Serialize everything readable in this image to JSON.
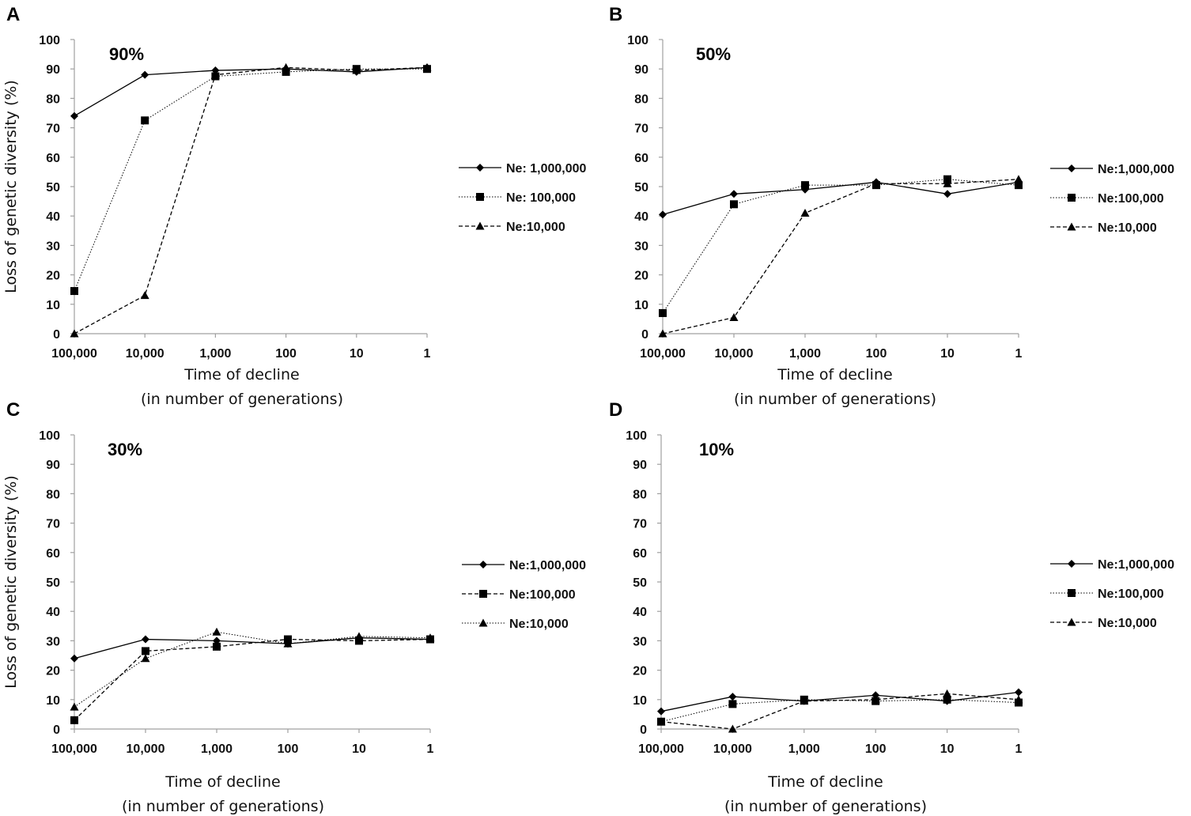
{
  "chart_data": [
    {
      "type": "line",
      "panel": "A",
      "annotation": "90%",
      "categories": [
        "100,000",
        "10,000",
        "1,000",
        "100",
        "10",
        "1"
      ],
      "ylabel": "Loss of genetic diversity (%)",
      "xlabel": "Time of decline",
      "xlabel2": "(in number of generations)",
      "ylim": [
        0,
        100
      ],
      "yticks": [
        0,
        10,
        20,
        30,
        40,
        50,
        60,
        70,
        80,
        90,
        100
      ],
      "legend_position": "right",
      "series": [
        {
          "name": "Ne: 1,000,000",
          "marker": "diamond",
          "line": "solid",
          "values": [
            74,
            88,
            89.5,
            90,
            89,
            90.5
          ]
        },
        {
          "name": "Ne: 100,000",
          "marker": "square",
          "line": "dotted",
          "values": [
            14.5,
            72.5,
            87.5,
            89,
            90,
            90
          ]
        },
        {
          "name": "Ne:10,000",
          "marker": "triangle",
          "line": "dashed",
          "values": [
            0,
            13,
            88,
            90.5,
            89.5,
            90.5
          ]
        }
      ]
    },
    {
      "type": "line",
      "panel": "B",
      "annotation": "50%",
      "categories": [
        "100,000",
        "10,000",
        "1,000",
        "100",
        "10",
        "1"
      ],
      "ylabel": "",
      "xlabel": "Time of decline",
      "xlabel2": "(in number of generations)",
      "ylim": [
        0,
        100
      ],
      "yticks": [
        0,
        10,
        20,
        30,
        40,
        50,
        60,
        70,
        80,
        90,
        100
      ],
      "legend_position": "right",
      "series": [
        {
          "name": "Ne:1,000,000",
          "marker": "diamond",
          "line": "solid",
          "values": [
            40.5,
            47.5,
            49,
            51.5,
            47.5,
            51.5
          ]
        },
        {
          "name": "Ne:100,000",
          "marker": "square",
          "line": "dotted",
          "values": [
            7,
            44,
            50.5,
            50.5,
            52.5,
            50.5
          ]
        },
        {
          "name": "Ne:10,000",
          "marker": "triangle",
          "line": "dashed",
          "values": [
            0,
            5.5,
            41,
            51,
            51,
            52.5
          ]
        }
      ]
    },
    {
      "type": "line",
      "panel": "C",
      "annotation": "30%",
      "categories": [
        "100,000",
        "10,000",
        "1,000",
        "100",
        "10",
        "1"
      ],
      "ylabel": "Loss of genetic diversity (%)",
      "xlabel": "Time of decline",
      "xlabel2": "(in number of generations)",
      "ylim": [
        0,
        100
      ],
      "yticks": [
        0,
        10,
        20,
        30,
        40,
        50,
        60,
        70,
        80,
        90,
        100
      ],
      "legend_position": "right",
      "series": [
        {
          "name": "Ne:1,000,000",
          "marker": "diamond",
          "line": "solid",
          "values": [
            24,
            30.5,
            30,
            29,
            31,
            30.5
          ]
        },
        {
          "name": "Ne:100,000",
          "marker": "square",
          "line": "dashed",
          "values": [
            3,
            26.5,
            28,
            30.5,
            30,
            30.5
          ]
        },
        {
          "name": "Ne:10,000",
          "marker": "triangle",
          "line": "dotted",
          "values": [
            7.5,
            24,
            33,
            29,
            31.5,
            31
          ]
        }
      ]
    },
    {
      "type": "line",
      "panel": "D",
      "annotation": "10%",
      "categories": [
        "100,000",
        "10,000",
        "1,000",
        "100",
        "10",
        "1"
      ],
      "ylabel": "",
      "xlabel": "Time of decline",
      "xlabel2": "(in number of generations)",
      "ylim": [
        0,
        100
      ],
      "yticks": [
        0,
        10,
        20,
        30,
        40,
        50,
        60,
        70,
        80,
        90,
        100
      ],
      "legend_position": "right",
      "series": [
        {
          "name": "Ne:1,000,000",
          "marker": "diamond",
          "line": "solid",
          "values": [
            6,
            11,
            9.5,
            11.5,
            9.5,
            12.5
          ]
        },
        {
          "name": "Ne:100,000",
          "marker": "square",
          "line": "dotted",
          "values": [
            2.5,
            8.5,
            10,
            9.5,
            10,
            9
          ]
        },
        {
          "name": "Ne:10,000",
          "marker": "triangle",
          "line": "dashed",
          "values": [
            2.5,
            0,
            9.5,
            10,
            12,
            10
          ]
        }
      ]
    }
  ],
  "colors": {
    "line": "#000000",
    "axis": "#a0a0a0",
    "text": "#111111"
  }
}
